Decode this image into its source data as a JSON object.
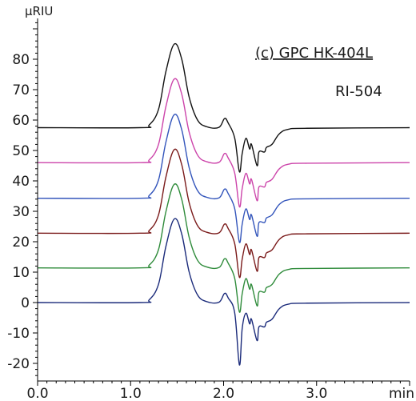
{
  "chart_data": {
    "type": "line",
    "title": "",
    "xlabel": "min",
    "ylabel": "µRIU",
    "xlim": [
      0.0,
      4.0
    ],
    "ylim": [
      -25,
      93
    ],
    "xticks": [
      "0.0",
      "1.0",
      "2.0",
      "3.0"
    ],
    "yticks": [
      "-20",
      "-10",
      "0",
      "10",
      "20",
      "30",
      "40",
      "50",
      "60",
      "70",
      "80"
    ],
    "grid": false,
    "annotations": [
      "(c) GPC HK-404L",
      "RI-504"
    ],
    "baselines": [
      57.5,
      46.0,
      34.3,
      22.8,
      11.4,
      0.0
    ],
    "series": [
      {
        "color": "#111111",
        "x": [
          0.0,
          1.1,
          1.2,
          1.3,
          1.38,
          1.47,
          1.55,
          1.63,
          1.72,
          1.82,
          1.95,
          2.01,
          2.05,
          2.12,
          2.17,
          2.2,
          2.24,
          2.28,
          2.3,
          2.36,
          2.38,
          2.44,
          2.46,
          2.52,
          2.6,
          2.7,
          2.9,
          4.0
        ],
        "values": [
          57.5,
          57.5,
          58.4,
          63.5,
          76.0,
          85.0,
          80.0,
          67.5,
          60.0,
          57.8,
          57.6,
          60.5,
          59.0,
          54.0,
          43.0,
          49.0,
          54.0,
          50.5,
          52.0,
          45.0,
          49.5,
          49.5,
          51.0,
          52.0,
          55.5,
          57.0,
          57.3,
          57.5
        ]
      },
      {
        "color": "#cc44aa",
        "x": [
          0.0,
          1.1,
          1.2,
          1.3,
          1.38,
          1.47,
          1.55,
          1.63,
          1.72,
          1.82,
          1.95,
          2.01,
          2.05,
          2.12,
          2.17,
          2.2,
          2.24,
          2.28,
          2.3,
          2.36,
          2.38,
          2.44,
          2.46,
          2.52,
          2.6,
          2.7,
          2.9,
          4.0
        ],
        "values": [
          46.0,
          46.0,
          46.9,
          52.0,
          64.5,
          73.5,
          68.5,
          56.0,
          48.5,
          46.3,
          46.1,
          49.0,
          47.5,
          42.5,
          31.5,
          37.5,
          42.5,
          39.0,
          40.5,
          33.5,
          38.0,
          38.0,
          39.5,
          40.5,
          44.0,
          45.5,
          45.8,
          46.0
        ]
      },
      {
        "color": "#3355bb",
        "x": [
          0.0,
          1.1,
          1.2,
          1.3,
          1.38,
          1.47,
          1.55,
          1.63,
          1.72,
          1.82,
          1.95,
          2.01,
          2.05,
          2.12,
          2.17,
          2.2,
          2.24,
          2.28,
          2.3,
          2.36,
          2.38,
          2.44,
          2.46,
          2.52,
          2.6,
          2.7,
          2.9,
          4.0
        ],
        "values": [
          34.3,
          34.3,
          35.2,
          40.3,
          52.8,
          61.8,
          56.8,
          44.3,
          36.8,
          34.6,
          34.4,
          37.3,
          35.8,
          30.8,
          19.8,
          25.8,
          30.8,
          27.3,
          28.8,
          21.8,
          26.3,
          26.3,
          27.8,
          28.8,
          32.3,
          33.8,
          34.1,
          34.3
        ]
      },
      {
        "color": "#7a1a1a",
        "x": [
          0.0,
          1.1,
          1.2,
          1.3,
          1.38,
          1.47,
          1.55,
          1.63,
          1.72,
          1.82,
          1.95,
          2.01,
          2.05,
          2.12,
          2.17,
          2.2,
          2.24,
          2.28,
          2.3,
          2.36,
          2.38,
          2.44,
          2.46,
          2.52,
          2.6,
          2.7,
          2.9,
          4.0
        ],
        "values": [
          22.8,
          22.8,
          23.7,
          28.8,
          41.3,
          50.3,
          45.3,
          32.8,
          25.3,
          23.1,
          22.9,
          25.8,
          24.3,
          19.3,
          8.3,
          14.3,
          19.3,
          15.8,
          17.3,
          10.3,
          14.8,
          14.8,
          16.3,
          17.3,
          20.8,
          22.3,
          22.6,
          22.8
        ]
      },
      {
        "color": "#2e8b3a",
        "x": [
          0.0,
          1.1,
          1.2,
          1.3,
          1.38,
          1.47,
          1.55,
          1.63,
          1.72,
          1.82,
          1.95,
          2.01,
          2.05,
          2.12,
          2.17,
          2.2,
          2.24,
          2.28,
          2.3,
          2.36,
          2.38,
          2.44,
          2.46,
          2.52,
          2.6,
          2.7,
          2.9,
          4.0
        ],
        "values": [
          11.4,
          11.4,
          12.3,
          17.4,
          29.9,
          38.9,
          33.9,
          21.4,
          13.9,
          11.7,
          11.5,
          14.4,
          12.9,
          7.9,
          -3.1,
          2.9,
          7.9,
          4.4,
          5.9,
          -1.1,
          3.4,
          3.4,
          4.9,
          5.9,
          9.4,
          10.9,
          11.2,
          11.4
        ]
      },
      {
        "color": "#1a2a7a",
        "x": [
          0.0,
          1.1,
          1.2,
          1.3,
          1.38,
          1.47,
          1.55,
          1.63,
          1.72,
          1.82,
          1.95,
          2.01,
          2.05,
          2.12,
          2.17,
          2.2,
          2.24,
          2.28,
          2.3,
          2.36,
          2.38,
          2.44,
          2.46,
          2.52,
          2.6,
          2.7,
          2.9,
          4.0
        ],
        "values": [
          0.0,
          0.0,
          0.9,
          6.0,
          18.5,
          27.5,
          22.5,
          10.0,
          2.5,
          0.3,
          0.1,
          3.0,
          1.5,
          -3.5,
          -20.5,
          -8.5,
          -3.5,
          -7.0,
          -5.5,
          -12.5,
          -8.0,
          -8.0,
          -6.5,
          -5.5,
          -2.0,
          -0.5,
          -0.2,
          0.0
        ]
      }
    ]
  }
}
